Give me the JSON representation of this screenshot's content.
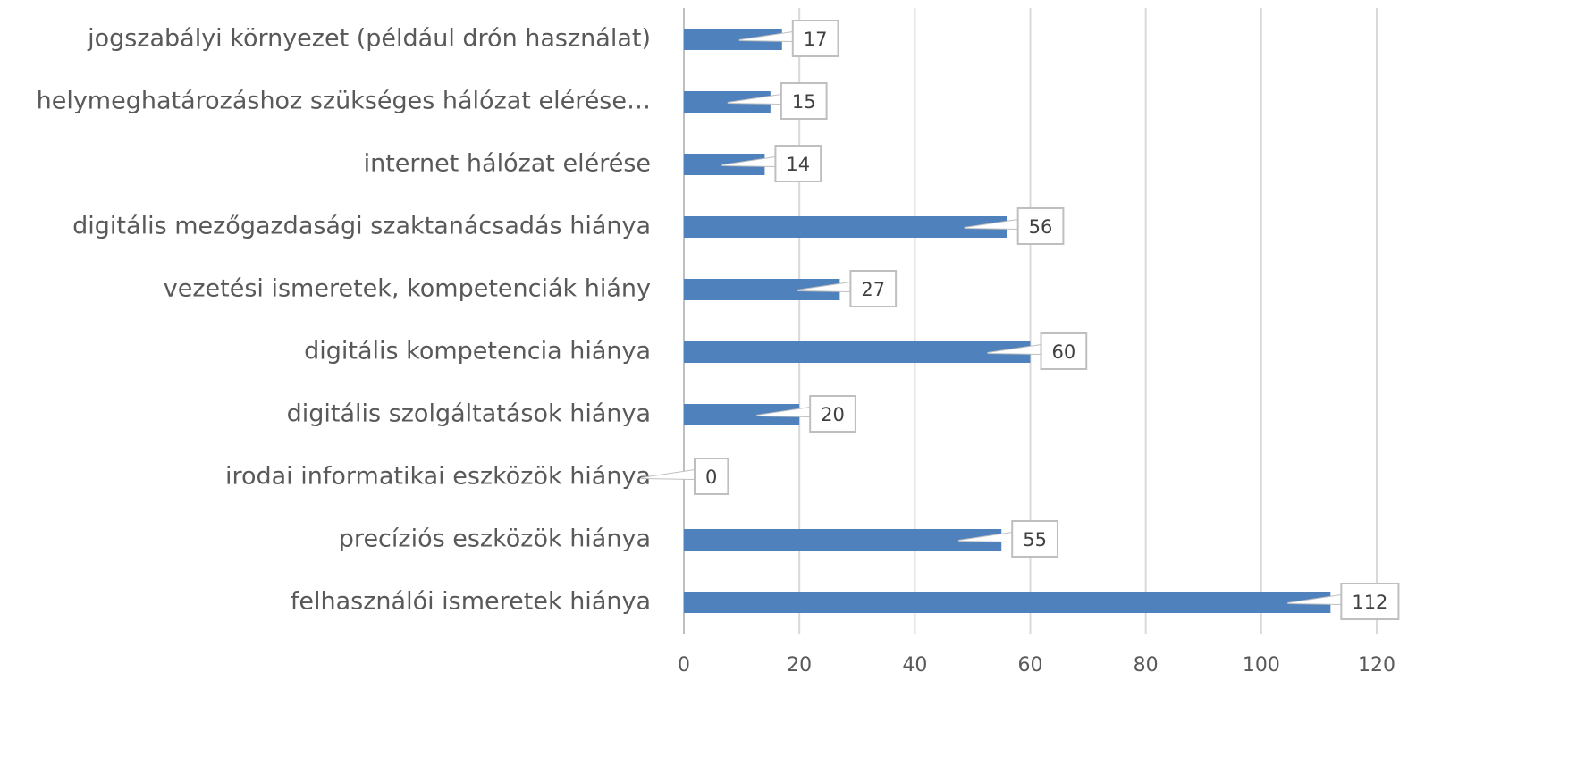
{
  "chart_data": {
    "type": "bar",
    "orientation": "horizontal",
    "categories": [
      "jogszabályi környezet (például drón használat)",
      "helymeghatározáshoz szükséges hálózat elérése…",
      "internet hálózat elérése",
      "digitális mezőgazdasági szaktanácsadás hiánya",
      "vezetési ismeretek, kompetenciák hiány",
      "digitális kompetencia hiánya",
      "digitális szolgáltatások hiánya",
      "irodai informatikai eszközök hiánya",
      "precíziós eszközök hiánya",
      "felhasználói ismeretek hiánya"
    ],
    "values": [
      17,
      15,
      14,
      56,
      27,
      60,
      20,
      0,
      55,
      112
    ],
    "color": "#4f81bd",
    "xlim": [
      0,
      120
    ],
    "xticks": [
      0,
      20,
      40,
      60,
      80,
      100,
      120
    ],
    "grid": true
  }
}
